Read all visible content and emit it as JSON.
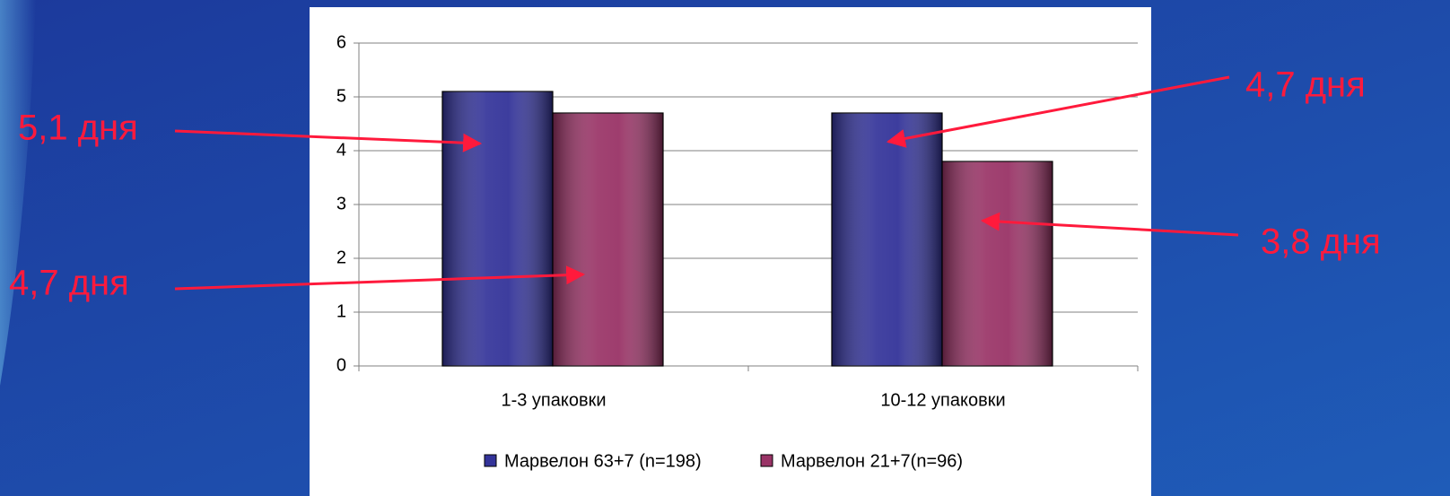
{
  "chart_data": {
    "type": "bar",
    "categories": [
      "1-3 упаковки",
      "10-12 упаковки"
    ],
    "series": [
      {
        "name": "Марвелон 63+7 (n=198)",
        "color": "#333399",
        "values": [
          5.1,
          4.7
        ],
        "value_labels": [
          "5,1 дня",
          "4,7 дня"
        ]
      },
      {
        "name": "Марвелон 21+7(n=96)",
        "color": "#993366",
        "values": [
          4.7,
          3.8
        ],
        "value_labels": [
          "4,7 дня",
          "3,8 дня"
        ]
      }
    ],
    "ylim": [
      0,
      6
    ],
    "yticks": [
      0,
      1,
      2,
      3,
      4,
      5,
      6
    ],
    "grid": true,
    "legend": "bottom"
  }
}
